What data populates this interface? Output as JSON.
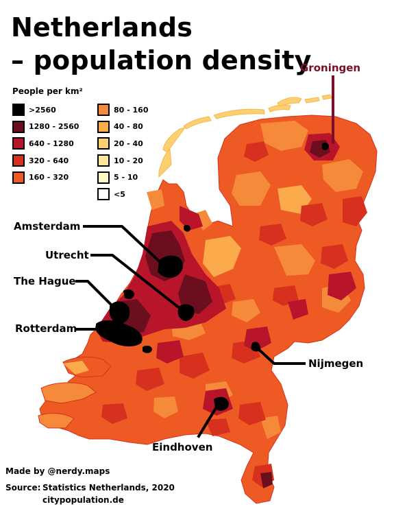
{
  "title": {
    "line1": "Netherlands",
    "line2": "– population density"
  },
  "legend": {
    "title": "People per km²",
    "items": [
      {
        "label": ">2560",
        "color": "#000000"
      },
      {
        "label": "1280 - 2560",
        "color": "#6b0f1f"
      },
      {
        "label": "640 - 1280",
        "color": "#b8142a"
      },
      {
        "label": "320 - 640",
        "color": "#d8301e"
      },
      {
        "label": "160 - 320",
        "color": "#ee5a24"
      },
      {
        "label": "80 - 160",
        "color": "#f58a3a"
      },
      {
        "label": "40 - 80",
        "color": "#fbaa4c"
      },
      {
        "label": "20 - 40",
        "color": "#fcd070"
      },
      {
        "label": "10 - 20",
        "color": "#fde79a"
      },
      {
        "label": "5 - 10",
        "color": "#fff6c4"
      },
      {
        "label": "<5",
        "color": "#ffffff"
      }
    ]
  },
  "cities": {
    "groningen": "Groningen",
    "amsterdam": "Amsterdam",
    "utrecht": "Utrecht",
    "the_hague": "The Hague",
    "rotterdam": "Rotterdam",
    "nijmegen": "Nijmegen",
    "eindhoven": "Eindhoven"
  },
  "credits": {
    "made_by": "Made by @nerdy.maps",
    "source_label": "Source:",
    "source_1": "Statistics Netherlands, 2020",
    "source_2": "citypopulation.de"
  },
  "colors": {
    "groningen_label": "#7a0f2a",
    "land_base": "#ee5a24",
    "water_islands": "#fcd070",
    "leader_line": "#000000"
  }
}
